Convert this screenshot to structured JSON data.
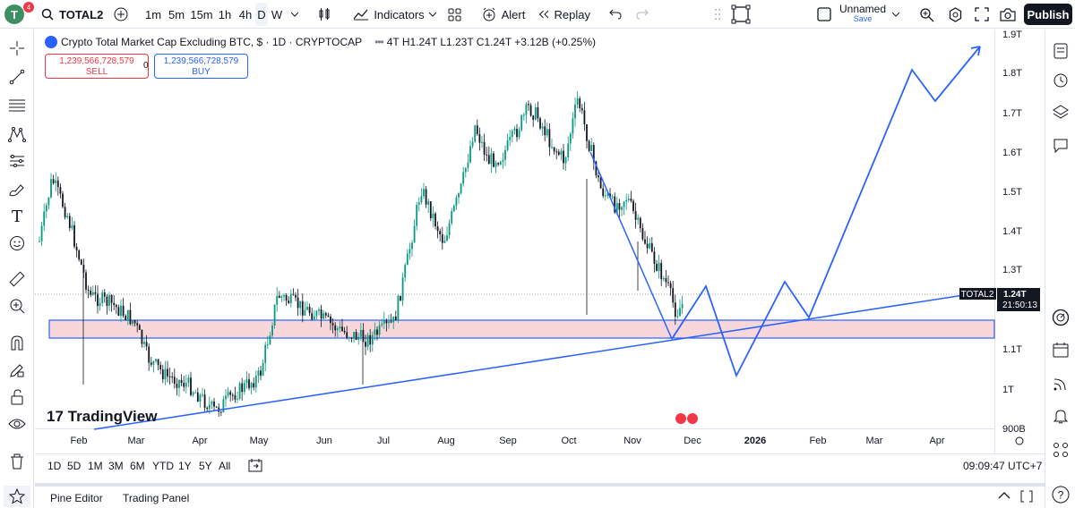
{
  "topbar": {
    "avatar_letter": "T",
    "notif_count": "4",
    "symbol": "TOTAL2",
    "intervals": [
      "1m",
      "5m",
      "15m",
      "1h",
      "4h",
      "D",
      "W"
    ],
    "active_interval": "D",
    "indicators": "Indicators",
    "alert": "Alert",
    "replay": "Replay",
    "layout_name": "Unnamed",
    "layout_sub": "Save",
    "publish": "Publish"
  },
  "legend": {
    "title": "Crypto Total Market Cap Excluding BTC, $ · 1D · CRYPTOCAP",
    "ohlc": "4T H1.24T L1.23T C1.24T +3.12B (+0.25%)"
  },
  "trade": {
    "sell_price": "1,239,566,728,579",
    "sell_label": "SELL",
    "buy_price": "1,239,566,728,579",
    "buy_label": "BUY",
    "spread": "0"
  },
  "chart_data": {
    "type": "candlestick",
    "y_ticks": [
      "1.9T",
      "1.8T",
      "1.7T",
      "1.6T",
      "1.5T",
      "1.4T",
      "1.3T",
      "1.1T",
      "1T",
      "900B"
    ],
    "x_ticks": [
      "Feb",
      "Mar",
      "Apr",
      "May",
      "Jun",
      "Jul",
      "Aug",
      "Sep",
      "Oct",
      "Nov",
      "Dec",
      "2026",
      "Feb",
      "Mar",
      "Apr"
    ],
    "last_label": "TOTAL2",
    "last_price": "1.24T",
    "countdown": "21:50:13",
    "watermark": "TradingView",
    "colors": {
      "up": "#089981",
      "down": "#131722",
      "drawing": "#2962ff",
      "zone": "#f8d7da"
    }
  },
  "bottombar": {
    "ranges": [
      "1D",
      "5D",
      "1M",
      "3M",
      "6M",
      "YTD",
      "1Y",
      "5Y",
      "All"
    ],
    "clock": "09:09:47 UTC+7"
  },
  "panels": {
    "pine": "Pine Editor",
    "trading": "Trading Panel"
  }
}
